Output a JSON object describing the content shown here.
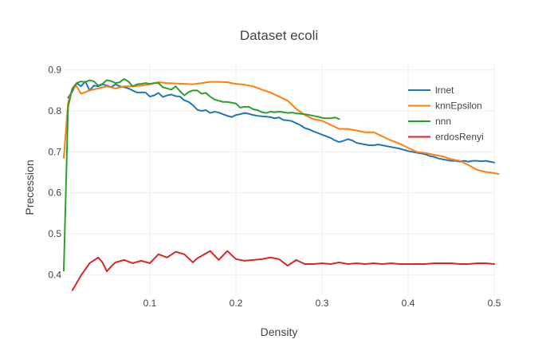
{
  "chart_data": {
    "type": "line",
    "title": "Dataset ecoli",
    "xlabel": "Density",
    "ylabel": "Precession",
    "xlim": [
      0.0,
      0.5
    ],
    "ylim": [
      0.35,
      0.915
    ],
    "x_ticks": [
      0.1,
      0.2,
      0.3,
      0.4,
      0.5
    ],
    "x_tick_labels": [
      "0.1",
      "0.2",
      "0.3",
      "0.4",
      "0.5"
    ],
    "y_ticks": [
      0.4,
      0.5,
      0.6,
      0.7,
      0.8,
      0.9
    ],
    "y_tick_labels": [
      "0.4",
      "0.5",
      "0.6",
      "0.7",
      "0.8",
      "0.9"
    ],
    "grid": true,
    "legend_position": "top-right",
    "series": [
      {
        "name": "lrnet",
        "color": "#1f77b4",
        "x": [
          0.005,
          0.01,
          0.015,
          0.02,
          0.025,
          0.03,
          0.035,
          0.04,
          0.045,
          0.05,
          0.055,
          0.06,
          0.065,
          0.07,
          0.075,
          0.08,
          0.085,
          0.09,
          0.095,
          0.1,
          0.105,
          0.11,
          0.115,
          0.12,
          0.125,
          0.13,
          0.135,
          0.14,
          0.145,
          0.15,
          0.155,
          0.16,
          0.165,
          0.17,
          0.175,
          0.18,
          0.185,
          0.19,
          0.195,
          0.2,
          0.205,
          0.21,
          0.215,
          0.22,
          0.225,
          0.23,
          0.235,
          0.24,
          0.245,
          0.25,
          0.255,
          0.26,
          0.265,
          0.27,
          0.275,
          0.28,
          0.285,
          0.29,
          0.295,
          0.3,
          0.305,
          0.31,
          0.315,
          0.32,
          0.325,
          0.33,
          0.335,
          0.34,
          0.345,
          0.35,
          0.355,
          0.36,
          0.365,
          0.37,
          0.375,
          0.38,
          0.385,
          0.39,
          0.395,
          0.4,
          0.405,
          0.41,
          0.415,
          0.42,
          0.425,
          0.43,
          0.435,
          0.44,
          0.445,
          0.45,
          0.455,
          0.46,
          0.465,
          0.47,
          0.475,
          0.48,
          0.485,
          0.49,
          0.495,
          0.5
        ],
        "y": [
          0.832,
          0.848,
          0.868,
          0.86,
          0.872,
          0.85,
          0.862,
          0.86,
          0.865,
          0.862,
          0.858,
          0.865,
          0.86,
          0.858,
          0.855,
          0.85,
          0.845,
          0.845,
          0.845,
          0.835,
          0.838,
          0.844,
          0.834,
          0.838,
          0.84,
          0.836,
          0.835,
          0.826,
          0.822,
          0.814,
          0.803,
          0.8,
          0.802,
          0.795,
          0.798,
          0.796,
          0.792,
          0.788,
          0.785,
          0.79,
          0.792,
          0.795,
          0.793,
          0.79,
          0.788,
          0.787,
          0.786,
          0.785,
          0.782,
          0.784,
          0.778,
          0.777,
          0.775,
          0.77,
          0.765,
          0.758,
          0.755,
          0.75,
          0.746,
          0.742,
          0.738,
          0.734,
          0.728,
          0.724,
          0.727,
          0.731,
          0.728,
          0.722,
          0.72,
          0.718,
          0.716,
          0.716,
          0.718,
          0.716,
          0.714,
          0.712,
          0.71,
          0.708,
          0.705,
          0.702,
          0.7,
          0.698,
          0.696,
          0.694,
          0.69,
          0.688,
          0.684,
          0.682,
          0.68,
          0.678,
          0.678,
          0.676,
          0.678,
          0.676,
          0.678,
          0.678,
          0.677,
          0.678,
          0.676,
          0.674
        ]
      },
      {
        "name": "knnEpsilon",
        "color": "#ff7f0e",
        "x": [
          0.0,
          0.005,
          0.01,
          0.015,
          0.02,
          0.03,
          0.04,
          0.05,
          0.06,
          0.07,
          0.08,
          0.09,
          0.1,
          0.11,
          0.12,
          0.13,
          0.14,
          0.15,
          0.16,
          0.17,
          0.18,
          0.19,
          0.2,
          0.21,
          0.22,
          0.23,
          0.24,
          0.25,
          0.26,
          0.27,
          0.28,
          0.29,
          0.3,
          0.31,
          0.32,
          0.33,
          0.34,
          0.35,
          0.36,
          0.37,
          0.38,
          0.39,
          0.4,
          0.41,
          0.42,
          0.43,
          0.44,
          0.45,
          0.46,
          0.47,
          0.48,
          0.49,
          0.5,
          0.505
        ],
        "y": [
          0.685,
          0.82,
          0.855,
          0.86,
          0.842,
          0.85,
          0.855,
          0.86,
          0.855,
          0.86,
          0.86,
          0.862,
          0.865,
          0.87,
          0.868,
          0.867,
          0.866,
          0.865,
          0.868,
          0.871,
          0.871,
          0.87,
          0.866,
          0.864,
          0.86,
          0.852,
          0.845,
          0.835,
          0.825,
          0.805,
          0.79,
          0.78,
          0.776,
          0.766,
          0.756,
          0.756,
          0.752,
          0.748,
          0.748,
          0.738,
          0.728,
          0.72,
          0.71,
          0.7,
          0.697,
          0.693,
          0.689,
          0.682,
          0.678,
          0.668,
          0.656,
          0.651,
          0.648,
          0.646
        ]
      },
      {
        "name": "nnn",
        "color": "#2ca02c",
        "x": [
          0.0,
          0.005,
          0.01,
          0.015,
          0.02,
          0.025,
          0.03,
          0.035,
          0.04,
          0.045,
          0.05,
          0.055,
          0.06,
          0.065,
          0.07,
          0.075,
          0.08,
          0.085,
          0.09,
          0.095,
          0.1,
          0.105,
          0.11,
          0.115,
          0.12,
          0.125,
          0.13,
          0.135,
          0.14,
          0.145,
          0.15,
          0.155,
          0.16,
          0.165,
          0.17,
          0.175,
          0.18,
          0.185,
          0.19,
          0.195,
          0.2,
          0.205,
          0.21,
          0.215,
          0.22,
          0.225,
          0.23,
          0.235,
          0.24,
          0.245,
          0.25,
          0.255,
          0.26,
          0.265,
          0.27,
          0.275,
          0.28,
          0.285,
          0.29,
          0.295,
          0.3,
          0.305,
          0.31,
          0.315,
          0.32
        ],
        "y": [
          0.41,
          0.81,
          0.855,
          0.868,
          0.872,
          0.87,
          0.875,
          0.872,
          0.862,
          0.866,
          0.875,
          0.873,
          0.868,
          0.87,
          0.878,
          0.872,
          0.86,
          0.865,
          0.866,
          0.868,
          0.866,
          0.868,
          0.868,
          0.858,
          0.855,
          0.852,
          0.86,
          0.848,
          0.838,
          0.846,
          0.85,
          0.85,
          0.842,
          0.844,
          0.835,
          0.828,
          0.825,
          0.822,
          0.822,
          0.82,
          0.818,
          0.808,
          0.81,
          0.81,
          0.804,
          0.802,
          0.797,
          0.795,
          0.798,
          0.797,
          0.798,
          0.797,
          0.795,
          0.796,
          0.794,
          0.793,
          0.792,
          0.79,
          0.788,
          0.786,
          0.783,
          0.782,
          0.782,
          0.784,
          0.78
        ]
      },
      {
        "name": "erdosRenyi",
        "color": "#d62728",
        "x": [
          0.01,
          0.02,
          0.03,
          0.04,
          0.045,
          0.05,
          0.055,
          0.06,
          0.07,
          0.08,
          0.09,
          0.1,
          0.11,
          0.12,
          0.13,
          0.14,
          0.15,
          0.155,
          0.16,
          0.17,
          0.18,
          0.19,
          0.2,
          0.21,
          0.22,
          0.23,
          0.24,
          0.25,
          0.26,
          0.27,
          0.28,
          0.29,
          0.3,
          0.31,
          0.32,
          0.33,
          0.34,
          0.35,
          0.36,
          0.37,
          0.38,
          0.39,
          0.4,
          0.41,
          0.42,
          0.43,
          0.44,
          0.45,
          0.46,
          0.47,
          0.48,
          0.49,
          0.5
        ],
        "y": [
          0.362,
          0.398,
          0.428,
          0.442,
          0.43,
          0.408,
          0.42,
          0.43,
          0.436,
          0.428,
          0.434,
          0.428,
          0.45,
          0.442,
          0.456,
          0.45,
          0.43,
          0.44,
          0.446,
          0.458,
          0.436,
          0.458,
          0.438,
          0.434,
          0.436,
          0.438,
          0.442,
          0.438,
          0.422,
          0.436,
          0.426,
          0.426,
          0.428,
          0.426,
          0.43,
          0.426,
          0.428,
          0.426,
          0.428,
          0.426,
          0.428,
          0.426,
          0.426,
          0.426,
          0.426,
          0.428,
          0.428,
          0.428,
          0.426,
          0.426,
          0.428,
          0.428,
          0.426
        ]
      }
    ]
  }
}
